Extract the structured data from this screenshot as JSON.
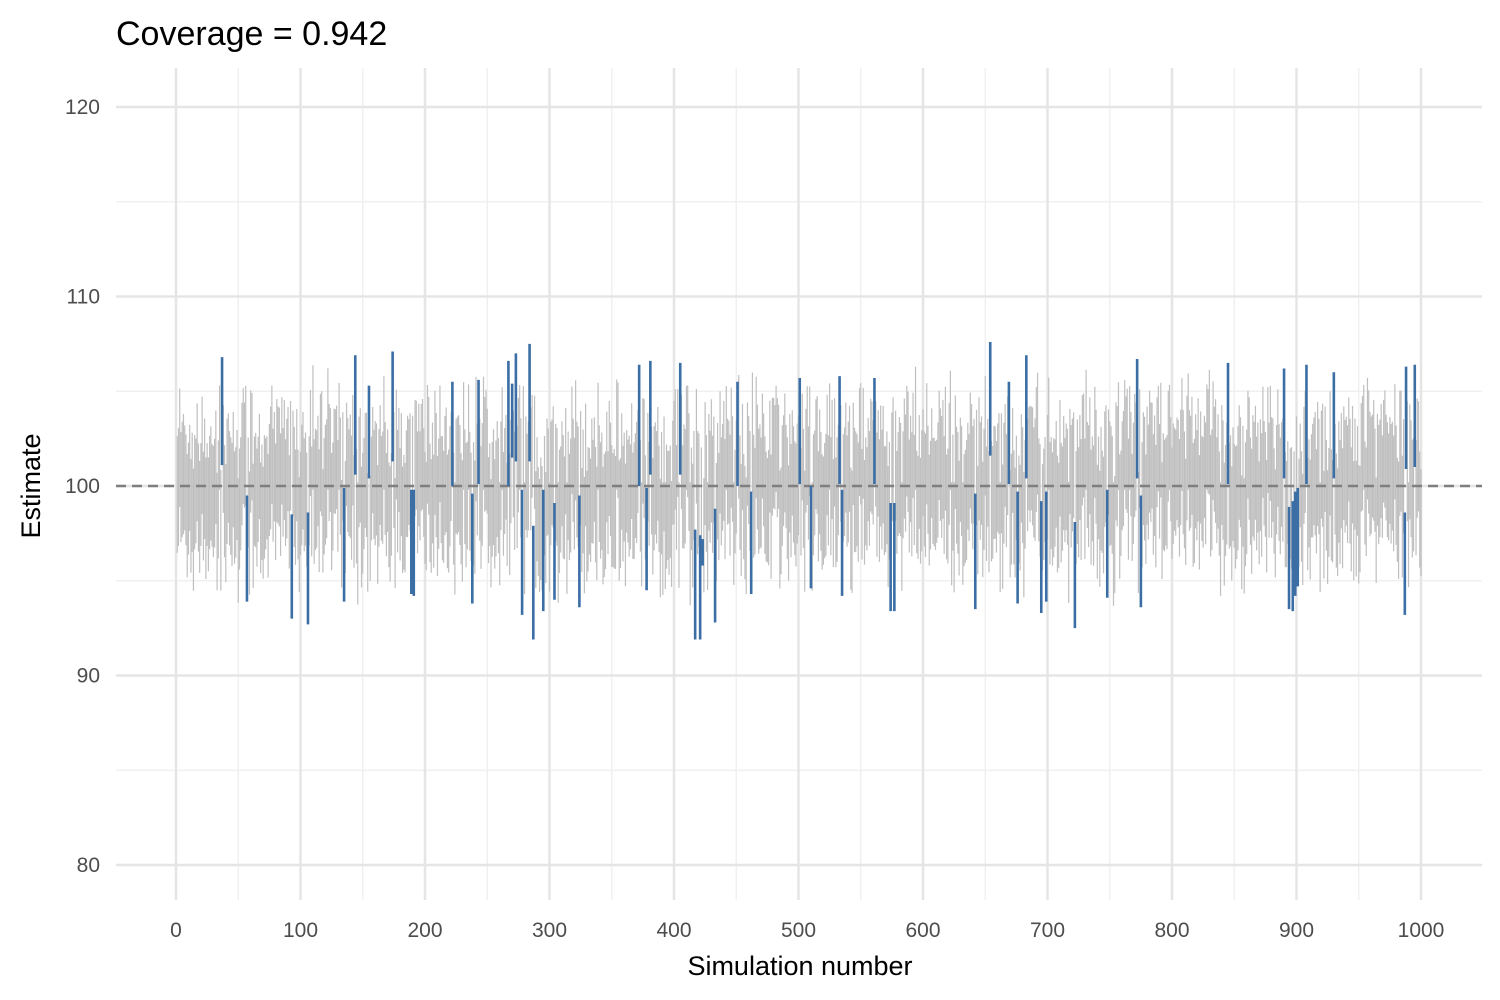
{
  "chart_data": {
    "type": "errorbar",
    "title": "Coverage = 0.942",
    "xlabel": "Simulation number",
    "ylabel": "Estimate",
    "xlim": [
      0,
      1000
    ],
    "ylim": [
      80,
      120
    ],
    "x_ticks": [
      0,
      100,
      200,
      300,
      400,
      500,
      600,
      700,
      800,
      900,
      1000
    ],
    "x_tick_labels": [
      "0",
      "100",
      "200",
      "300",
      "400",
      "500",
      "600",
      "700",
      "800",
      "900",
      "1000"
    ],
    "y_ticks": [
      80,
      90,
      100,
      110,
      120
    ],
    "y_tick_labels": [
      "80",
      "90",
      "100",
      "110",
      "120"
    ],
    "grid": true,
    "reference_line": {
      "y": 100,
      "style": "dashed"
    },
    "n_simulations": 1000,
    "coverage": 0.942,
    "colors": {
      "covering_interval": "#bfbfbf",
      "non_covering_interval": "#3a6ea5",
      "reference_line": "#7f7f7f",
      "grid_major": "#e5e5e5",
      "grid_minor": "#f0f0f0"
    },
    "series": [
      {
        "name": "",
        "role": "non-covering intervals (lower, upper)",
        "x": [
          37,
          57,
          93,
          106,
          135,
          144,
          155,
          174,
          189,
          191,
          222,
          238,
          243,
          267,
          270,
          273,
          278,
          284,
          287,
          295,
          304,
          324,
          372,
          378,
          381,
          405,
          417,
          421,
          423,
          433,
          451,
          462,
          501,
          510,
          533,
          535,
          561,
          574,
          577,
          642,
          654,
          669,
          676,
          683,
          695,
          699,
          722,
          748,
          772,
          775,
          845,
          890,
          894,
          897,
          899,
          901,
          908,
          930,
          987,
          988,
          995
        ],
        "lower": [
          101.1,
          93.9,
          93.0,
          92.7,
          93.9,
          100.6,
          100.4,
          101.3,
          94.3,
          94.2,
          100.0,
          93.8,
          100.1,
          100.0,
          101.5,
          101.3,
          93.2,
          101.3,
          91.9,
          93.4,
          94.0,
          93.6,
          100.0,
          94.5,
          100.6,
          100.6,
          91.9,
          91.9,
          95.8,
          92.8,
          100.0,
          94.3,
          100.1,
          94.6,
          100.1,
          94.2,
          100.1,
          93.4,
          93.4,
          93.5,
          101.6,
          100.1,
          93.8,
          100.4,
          93.3,
          93.9,
          92.5,
          94.1,
          100.4,
          93.6,
          100.1,
          100.4,
          93.5,
          93.4,
          94.2,
          94.7,
          100.1,
          100.4,
          93.2,
          100.9,
          101.0
        ],
        "upper": [
          106.8,
          99.5,
          98.5,
          98.6,
          99.9,
          106.9,
          105.3,
          107.1,
          99.8,
          99.8,
          105.5,
          99.6,
          105.6,
          106.6,
          105.4,
          107.0,
          99.8,
          107.5,
          97.9,
          99.8,
          99.1,
          99.5,
          106.4,
          99.9,
          106.6,
          106.5,
          97.7,
          97.4,
          97.2,
          98.8,
          105.5,
          99.7,
          105.7,
          100.0,
          105.8,
          99.8,
          105.7,
          99.1,
          99.1,
          99.6,
          107.6,
          105.5,
          99.7,
          106.9,
          99.2,
          99.7,
          98.1,
          99.8,
          106.7,
          99.5,
          106.5,
          106.2,
          98.9,
          99.2,
          99.7,
          99.9,
          106.4,
          106.0,
          98.6,
          106.3,
          106.4
        ]
      }
    ]
  }
}
